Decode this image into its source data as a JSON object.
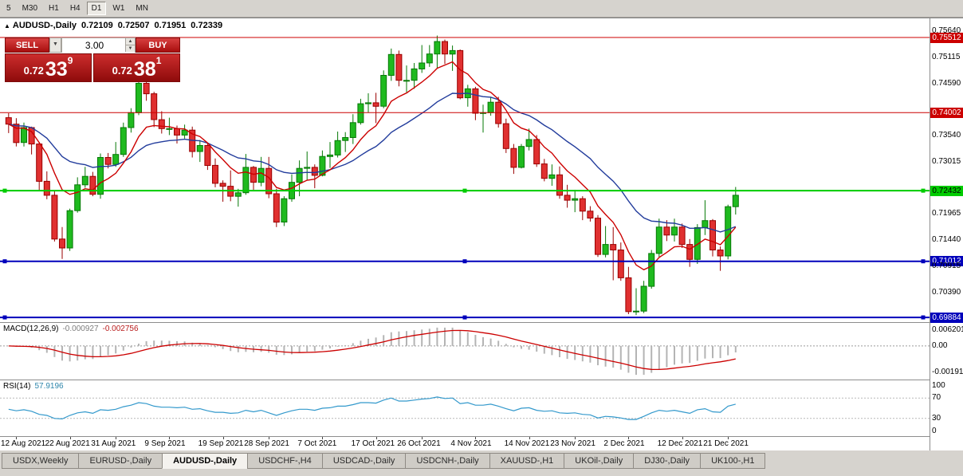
{
  "toolbar": {
    "timeframes": [
      "5",
      "M30",
      "H1",
      "H4",
      "D1",
      "W1",
      "MN"
    ],
    "active": "D1"
  },
  "chart": {
    "title": {
      "symbol": "AUDUSD-,Daily",
      "open": "0.72109",
      "high": "0.72507",
      "low": "0.71951",
      "close": "0.72339"
    },
    "trade_panel": {
      "sell_label": "SELL",
      "buy_label": "BUY",
      "volume": "3.00",
      "dropdown_icon": "▼",
      "sell_price": {
        "base": "0.72",
        "big": "33",
        "sup": "9"
      },
      "buy_price": {
        "base": "0.72",
        "big": "38",
        "sup": "1"
      }
    }
  },
  "chart_data": {
    "type": "candlestick",
    "symbol": "AUDUSD-,Daily",
    "last_ohlc": {
      "open": 0.72109,
      "high": 0.72507,
      "low": 0.71951,
      "close": 0.72339
    },
    "price_range": {
      "max": 0.75897,
      "min": 0.69789
    },
    "palette": {
      "bull": "#1fba1f",
      "bull_edge": "#067806",
      "bear": "#e03030",
      "bear_edge": "#990000",
      "ma_fast": "#cc0000",
      "ma_slow": "#223c9c",
      "macd_hist": "#b4b4b4",
      "macd_signal": "#cc0000",
      "rsi_line": "#3399cc"
    },
    "ma_fast": 8,
    "ma_slow": 21,
    "candles": [
      [
        0.739,
        0.7399,
        0.7359,
        0.7377
      ],
      [
        0.7377,
        0.7389,
        0.7332,
        0.734
      ],
      [
        0.734,
        0.738,
        0.7332,
        0.737
      ],
      [
        0.737,
        0.7372,
        0.7316,
        0.7337
      ],
      [
        0.7337,
        0.7341,
        0.7242,
        0.7262
      ],
      [
        0.7262,
        0.7282,
        0.7226,
        0.7234
      ],
      [
        0.7234,
        0.7243,
        0.7141,
        0.7146
      ],
      [
        0.7146,
        0.717,
        0.7106,
        0.7128
      ],
      [
        0.7128,
        0.7207,
        0.7122,
        0.7203
      ],
      [
        0.7203,
        0.727,
        0.7199,
        0.7255
      ],
      [
        0.7255,
        0.7291,
        0.7249,
        0.7272
      ],
      [
        0.7272,
        0.7281,
        0.7232,
        0.7236
      ],
      [
        0.7236,
        0.7318,
        0.7227,
        0.731
      ],
      [
        0.731,
        0.7319,
        0.7288,
        0.7296
      ],
      [
        0.7296,
        0.7341,
        0.7291,
        0.7316
      ],
      [
        0.7316,
        0.738,
        0.7311,
        0.737
      ],
      [
        0.737,
        0.7409,
        0.736,
        0.74
      ],
      [
        0.74,
        0.7478,
        0.7395,
        0.7459
      ],
      [
        0.7459,
        0.7462,
        0.7424,
        0.7438
      ],
      [
        0.7438,
        0.7442,
        0.7371,
        0.7386
      ],
      [
        0.7386,
        0.7403,
        0.7358,
        0.7368
      ],
      [
        0.7368,
        0.739,
        0.7355,
        0.7368
      ],
      [
        0.7368,
        0.7374,
        0.7338,
        0.7355
      ],
      [
        0.7355,
        0.7376,
        0.7348,
        0.7365
      ],
      [
        0.7365,
        0.7372,
        0.731,
        0.7322
      ],
      [
        0.7322,
        0.7345,
        0.7301,
        0.7334
      ],
      [
        0.7334,
        0.734,
        0.7285,
        0.7294
      ],
      [
        0.7294,
        0.7308,
        0.725,
        0.7258
      ],
      [
        0.7258,
        0.7264,
        0.7221,
        0.7252
      ],
      [
        0.7252,
        0.7284,
        0.7222,
        0.7232
      ],
      [
        0.7232,
        0.7247,
        0.7211,
        0.7239
      ],
      [
        0.7239,
        0.7317,
        0.7235,
        0.729
      ],
      [
        0.729,
        0.7293,
        0.7245,
        0.726
      ],
      [
        0.726,
        0.7311,
        0.7252,
        0.7288
      ],
      [
        0.7288,
        0.7311,
        0.7228,
        0.7237
      ],
      [
        0.7237,
        0.7247,
        0.717,
        0.718
      ],
      [
        0.718,
        0.7232,
        0.7172,
        0.7227
      ],
      [
        0.7227,
        0.7276,
        0.7221,
        0.726
      ],
      [
        0.726,
        0.7304,
        0.7232,
        0.7288
      ],
      [
        0.7288,
        0.7322,
        0.7265,
        0.729
      ],
      [
        0.729,
        0.7296,
        0.7248,
        0.7274
      ],
      [
        0.7274,
        0.7324,
        0.7272,
        0.7312
      ],
      [
        0.7312,
        0.7341,
        0.7289,
        0.7315
      ],
      [
        0.7315,
        0.7362,
        0.731,
        0.7344
      ],
      [
        0.7344,
        0.7361,
        0.7321,
        0.735
      ],
      [
        0.735,
        0.7397,
        0.7337,
        0.738
      ],
      [
        0.738,
        0.7428,
        0.7376,
        0.7418
      ],
      [
        0.7418,
        0.7439,
        0.74,
        0.742
      ],
      [
        0.742,
        0.744,
        0.7379,
        0.7413
      ],
      [
        0.7413,
        0.7485,
        0.7409,
        0.7475
      ],
      [
        0.7475,
        0.7529,
        0.7464,
        0.7517
      ],
      [
        0.7517,
        0.7525,
        0.7453,
        0.7465
      ],
      [
        0.7465,
        0.7495,
        0.7441,
        0.7465
      ],
      [
        0.7465,
        0.75,
        0.7448,
        0.7488
      ],
      [
        0.7488,
        0.7536,
        0.748,
        0.75
      ],
      [
        0.75,
        0.7536,
        0.7492,
        0.7518
      ],
      [
        0.7518,
        0.7555,
        0.749,
        0.7543
      ],
      [
        0.7543,
        0.7547,
        0.7498,
        0.7518
      ],
      [
        0.7518,
        0.7535,
        0.7484,
        0.7525
      ],
      [
        0.7525,
        0.7527,
        0.7427,
        0.743
      ],
      [
        0.743,
        0.7456,
        0.7412,
        0.7448
      ],
      [
        0.7448,
        0.7452,
        0.7385,
        0.7399
      ],
      [
        0.7399,
        0.7416,
        0.736,
        0.74
      ],
      [
        0.74,
        0.7432,
        0.7394,
        0.7421
      ],
      [
        0.7421,
        0.7432,
        0.737,
        0.7378
      ],
      [
        0.7378,
        0.7388,
        0.7319,
        0.7328
      ],
      [
        0.7328,
        0.7337,
        0.7277,
        0.729
      ],
      [
        0.729,
        0.7337,
        0.7288,
        0.7332
      ],
      [
        0.7332,
        0.7368,
        0.7324,
        0.7346
      ],
      [
        0.7346,
        0.7355,
        0.7291,
        0.7297
      ],
      [
        0.7297,
        0.7307,
        0.7262,
        0.7268
      ],
      [
        0.7268,
        0.7296,
        0.7253,
        0.7275
      ],
      [
        0.7275,
        0.7292,
        0.7227,
        0.7234
      ],
      [
        0.7234,
        0.7255,
        0.7209,
        0.7224
      ],
      [
        0.7224,
        0.7245,
        0.72,
        0.7227
      ],
      [
        0.7227,
        0.7232,
        0.7184,
        0.7202
      ],
      [
        0.7202,
        0.7212,
        0.7181,
        0.7188
      ],
      [
        0.7188,
        0.7194,
        0.711,
        0.7115
      ],
      [
        0.7115,
        0.7172,
        0.7109,
        0.7135
      ],
      [
        0.7135,
        0.717,
        0.7063,
        0.7124
      ],
      [
        0.7124,
        0.7139,
        0.7062,
        0.7068
      ],
      [
        0.7068,
        0.709,
        0.6995,
        0.7
      ],
      [
        0.7,
        0.7047,
        0.6993,
        0.7001
      ],
      [
        0.7001,
        0.7062,
        0.6997,
        0.7051
      ],
      [
        0.7051,
        0.7124,
        0.7046,
        0.7117
      ],
      [
        0.7117,
        0.7187,
        0.711,
        0.717
      ],
      [
        0.717,
        0.7184,
        0.7142,
        0.7154
      ],
      [
        0.7154,
        0.7187,
        0.7141,
        0.717
      ],
      [
        0.717,
        0.7177,
        0.7128,
        0.7135
      ],
      [
        0.7135,
        0.7146,
        0.709,
        0.7105
      ],
      [
        0.7105,
        0.7176,
        0.7096,
        0.7169
      ],
      [
        0.7169,
        0.7224,
        0.7154,
        0.7183
      ],
      [
        0.7183,
        0.7186,
        0.7111,
        0.7124
      ],
      [
        0.7124,
        0.7131,
        0.7082,
        0.7112
      ],
      [
        0.7112,
        0.7215,
        0.7105,
        0.7211
      ],
      [
        0.72109,
        0.72507,
        0.71951,
        0.72339
      ]
    ],
    "hlines": [
      {
        "price": 0.75512,
        "label": "0.75512",
        "color": "#cc0000",
        "text": "#ffffff",
        "width": 1,
        "handles": false
      },
      {
        "price": 0.74002,
        "label": "0.74002",
        "color": "#cc0000",
        "text": "#ffffff",
        "width": 1,
        "handles": false
      },
      {
        "price": 0.72432,
        "label": "0.72432",
        "color": "#00cc00",
        "text": "#000000",
        "width": 2,
        "handles": true
      },
      {
        "price": 0.71012,
        "label": "0.71012",
        "color": "#0000bb",
        "text": "#ffffff",
        "width": 2,
        "handles": true
      },
      {
        "price": 0.69884,
        "label": "0.69884",
        "color": "#0000bb",
        "text": "#ffffff",
        "width": 2,
        "handles": true
      }
    ],
    "price_ticks": [
      {
        "label": "0.75640",
        "price": 0.7564
      },
      {
        "label": "0.75115",
        "price": 0.75115
      },
      {
        "label": "0.74590",
        "price": 0.7459
      },
      {
        "label": "0.73540",
        "price": 0.7354
      },
      {
        "label": "0.73015",
        "price": 0.73015
      },
      {
        "label": "0.71965",
        "price": 0.71965
      },
      {
        "label": "0.71440",
        "price": 0.7144
      },
      {
        "label": "0.70915",
        "price": 0.70915
      },
      {
        "label": "0.70390",
        "price": 0.7039
      }
    ],
    "date_ticks": [
      {
        "label": "12 Aug 2021",
        "candle": 2
      },
      {
        "label": "22 Aug 2021",
        "candle": 9
      },
      {
        "label": "31 Aug 2021",
        "candle": 15
      },
      {
        "label": "9 Sep 2021",
        "candle": 22
      },
      {
        "label": "19 Sep 2021",
        "candle": 29
      },
      {
        "label": "28 Sep 2021",
        "candle": 35
      },
      {
        "label": "7 Oct 2021",
        "candle": 42
      },
      {
        "label": "17 Oct 2021",
        "candle": 49
      },
      {
        "label": "26 Oct 2021",
        "candle": 55
      },
      {
        "label": "4 Nov 2021",
        "candle": 62
      },
      {
        "label": "14 Nov 2021",
        "candle": 69
      },
      {
        "label": "23 Nov 2021",
        "candle": 75
      },
      {
        "label": "2 Dec 2021",
        "candle": 82
      },
      {
        "label": "12 Dec 2021",
        "candle": 89
      },
      {
        "label": "21 Dec 2021",
        "candle": 95
      }
    ],
    "macd": {
      "label": "MACD(12,26,9)",
      "value_main": "-0.000927",
      "value_signal": "-0.002756",
      "fast": 12,
      "slow": 26,
      "signal_period": 9,
      "axis": {
        "top": "0.006201",
        "zero": "0.00",
        "bottom": "-0.001917"
      }
    },
    "rsi": {
      "label": "RSI(14)",
      "value": "57.9196",
      "levels": [
        70,
        30
      ],
      "axis": [
        {
          "label": "100",
          "value": 100
        },
        {
          "label": "70",
          "value": 70
        },
        {
          "label": "30",
          "value": 30
        },
        {
          "label": "0",
          "value": 0
        }
      ],
      "values": [
        48,
        45,
        47,
        44,
        38,
        36,
        30,
        29,
        36,
        41,
        43,
        40,
        47,
        46,
        48,
        53,
        56,
        61,
        59,
        54,
        52,
        52,
        51,
        52,
        48,
        49,
        45,
        42,
        42,
        40,
        41,
        46,
        43,
        46,
        41,
        36,
        41,
        45,
        48,
        48,
        46,
        50,
        51,
        54,
        54,
        57,
        61,
        61,
        60,
        66,
        70,
        64,
        64,
        66,
        68,
        69,
        72,
        69,
        70,
        59,
        61,
        56,
        56,
        58,
        54,
        49,
        45,
        50,
        51,
        46,
        44,
        45,
        41,
        40,
        41,
        38,
        37,
        31,
        34,
        33,
        31,
        28,
        28,
        34,
        41,
        46,
        44,
        46,
        43,
        40,
        47,
        49,
        43,
        42,
        54,
        57.9
      ]
    }
  },
  "tabs": {
    "items": [
      {
        "label": "USDX,Weekly",
        "active": false
      },
      {
        "label": "EURUSD-,Daily",
        "active": false
      },
      {
        "label": "AUDUSD-,Daily",
        "active": true
      },
      {
        "label": "USDCHF-,H4",
        "active": false
      },
      {
        "label": "USDCAD-,Daily",
        "active": false
      },
      {
        "label": "USDCNH-,Daily",
        "active": false
      },
      {
        "label": "XAUUSD-,H1",
        "active": false
      },
      {
        "label": "UKOil-,Daily",
        "active": false
      },
      {
        "label": "DJ30-,Daily",
        "active": false
      },
      {
        "label": "UK100-,H1",
        "active": false
      }
    ]
  }
}
